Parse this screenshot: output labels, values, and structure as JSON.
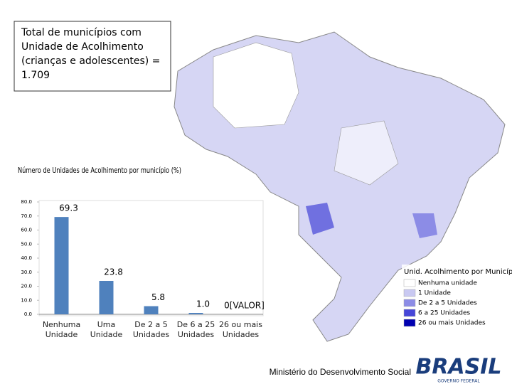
{
  "title_box": "Total de municípios com Unidade de Acolhimento (crianças e adolescentes) = 1.709",
  "chart_data": {
    "type": "bar",
    "title": "Número de Unidades de Acolhimento por município (%)",
    "categories": [
      "Nenhuma Unidade",
      "Uma Unidade",
      "De 2 a 5 Unidades",
      "De 6 a 25 Unidades",
      "26 ou mais Unidades"
    ],
    "values": [
      69.3,
      23.8,
      5.8,
      1.0,
      0
    ],
    "value_labels": [
      "69.3",
      "23.8",
      "5.8",
      "1.0",
      "0[VALOR]"
    ],
    "color": "#4f81bd",
    "ylim": [
      0,
      80
    ],
    "yticks": [
      {
        "value": 0,
        "label": "0.0"
      },
      {
        "value": 10,
        "label": "10.0"
      },
      {
        "value": 20,
        "label": "20.0"
      },
      {
        "value": 30,
        "label": "30.0"
      },
      {
        "value": 40,
        "label": "40.0"
      },
      {
        "value": 50,
        "label": "50.0"
      },
      {
        "value": 60,
        "label": "60.0"
      },
      {
        "value": 70,
        "label": "70.0"
      },
      {
        "value": 80,
        "label": "80.0"
      }
    ]
  },
  "map_legend": {
    "title": "Unid. Acolhimento por Município",
    "items": [
      {
        "label": "Nenhuma unidade",
        "color": "#ffffff"
      },
      {
        "label": "1 Unidade",
        "color": "#c9c9f2"
      },
      {
        "label": "De 2 a 5 Unidades",
        "color": "#8c8ce6"
      },
      {
        "label": "6 a 25 Unidades",
        "color": "#4646d8"
      },
      {
        "label": "26 ou mais Unidades",
        "color": "#0000b0"
      }
    ]
  },
  "footer": {
    "ministry": "Ministério do Desenvolvimento Social",
    "logo": "BRASIL",
    "logo_sub": "GOVERNO FEDERAL"
  }
}
